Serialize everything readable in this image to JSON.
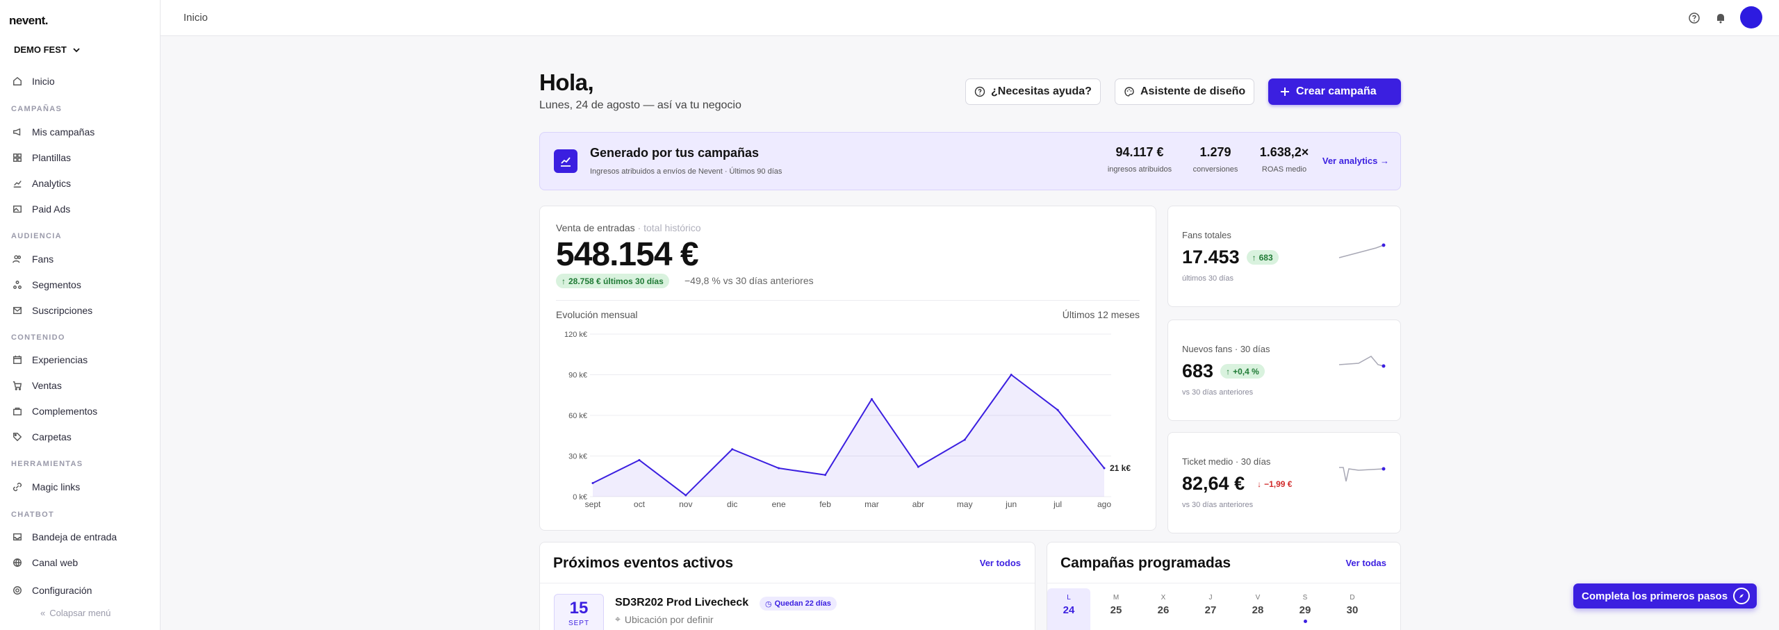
{
  "app": {
    "logo": "nevent.",
    "org": "DEMO FEST",
    "breadcrumb": "Inicio"
  },
  "sidebar": {
    "top_item": "Inicio",
    "sections": [
      {
        "title": "CAMPAÑAS",
        "items": [
          "Mis campañas",
          "Plantillas",
          "Analytics",
          "Paid Ads"
        ]
      },
      {
        "title": "AUDIENCIA",
        "items": [
          "Fans",
          "Segmentos",
          "Suscripciones"
        ]
      },
      {
        "title": "CONTENIDO",
        "items": [
          "Experiencias",
          "Ventas",
          "Complementos",
          "Carpetas"
        ]
      },
      {
        "title": "HERRAMIENTAS",
        "items": [
          "Magic links"
        ]
      },
      {
        "title": "CHATBOT",
        "items": [
          "Bandeja de entrada",
          "Canal web"
        ]
      }
    ],
    "settings": "Configuración",
    "collapse": "Colapsar menú"
  },
  "header": {
    "greeting": "Hola,",
    "subtitle": "Lunes, 24 de agosto — así va tu negocio",
    "help_button": "¿Necesitas ayuda?",
    "design_button": "Asistente de diseño",
    "create_button": "Crear campaña"
  },
  "banner": {
    "title": "Generado por tus campañas",
    "subtitle": "Ingresos atribuidos a envíos de Nevent · Últimos 90 días",
    "stats": [
      {
        "value": "94.117 €",
        "label": "ingresos atribuidos"
      },
      {
        "value": "1.279",
        "label": "conversiones"
      },
      {
        "value": "1.638,2×",
        "label": "ROAS medio"
      }
    ],
    "link": "Ver analytics →"
  },
  "sales": {
    "label": "Venta de entradas",
    "label_muted": "· total histórico",
    "value": "548.154 €",
    "badge": "28.758 € últimos 30 días",
    "compare": "−49,8 % vs 30 días anteriores",
    "evolution_label": "Evolución mensual",
    "evolution_range": "Últimos 12 meses"
  },
  "chart_data": {
    "type": "area",
    "categories": [
      "sept",
      "oct",
      "nov",
      "dic",
      "ene",
      "feb",
      "mar",
      "abr",
      "may",
      "jun",
      "jul",
      "ago"
    ],
    "values": [
      10,
      27,
      1,
      35,
      21,
      16,
      72,
      22,
      42,
      90,
      64,
      21
    ],
    "y_ticks": [
      "0 k€",
      "30 k€",
      "60 k€",
      "90 k€",
      "120 k€"
    ],
    "ylim": [
      0,
      120
    ],
    "last_label": "21 k€",
    "color": "#3b1fe0"
  },
  "mini_cards": [
    {
      "label": "Fans totales",
      "value": "17.453",
      "badge": "683",
      "trend": "up",
      "sub": "últimos 30 días"
    },
    {
      "label": "Nuevos fans · 30 días",
      "value": "683",
      "badge": "+0,4 %",
      "trend": "up",
      "sub": "vs 30 días anteriores"
    },
    {
      "label": "Ticket medio · 30 días",
      "value": "82,64 €",
      "badge": "−1,99 €",
      "trend": "down",
      "sub": "vs 30 días anteriores"
    }
  ],
  "events": {
    "title": "Próximos eventos activos",
    "link": "Ver todos",
    "item": {
      "day": "15",
      "month": "SEPT",
      "name": "SD3R202 Prod Livecheck",
      "tag": "Quedan 22 días",
      "location": "Ubicación por definir"
    }
  },
  "campaigns": {
    "title": "Campañas programadas",
    "link": "Ver todas",
    "days": [
      {
        "wd": "L",
        "dn": "24"
      },
      {
        "wd": "M",
        "dn": "25"
      },
      {
        "wd": "X",
        "dn": "26"
      },
      {
        "wd": "J",
        "dn": "27"
      },
      {
        "wd": "V",
        "dn": "28"
      },
      {
        "wd": "S",
        "dn": "29"
      },
      {
        "wd": "D",
        "dn": "30"
      }
    ]
  },
  "floating": {
    "label": "Completa los primeros pasos"
  }
}
